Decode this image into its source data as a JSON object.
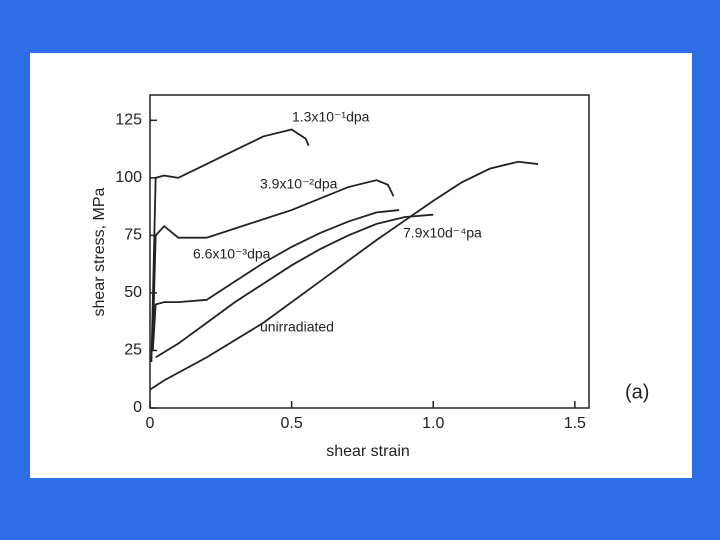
{
  "chart_data": {
    "type": "line",
    "xlabel": "shear strain",
    "ylabel": "shear stress, MPa",
    "annotation": "(a)",
    "xlim": [
      0,
      1.55
    ],
    "ylim": [
      0,
      136
    ],
    "xticks": [
      0,
      0.5,
      {
        "value": 1,
        "label": "1.0"
      },
      1.5
    ],
    "yticks": [
      0,
      25,
      50,
      75,
      100,
      125
    ],
    "series": [
      {
        "name": "1.3x10⁻¹dpa",
        "color": "#222222",
        "x": [
          0.005,
          0.02,
          0.05,
          0.1,
          0.15,
          0.2,
          0.3,
          0.4,
          0.5,
          0.55,
          0.56
        ],
        "values": [
          20,
          100,
          101,
          100,
          103,
          106,
          112,
          118,
          121,
          117,
          114
        ]
      },
      {
        "name": "3.9x10⁻²dpa",
        "color": "#222222",
        "x": [
          0.01,
          0.02,
          0.05,
          0.1,
          0.2,
          0.3,
          0.4,
          0.5,
          0.6,
          0.7,
          0.8,
          0.84,
          0.86
        ],
        "values": [
          30,
          75,
          79,
          74,
          74,
          78,
          82,
          86,
          91,
          96,
          99,
          97,
          92
        ]
      },
      {
        "name": "6.6x10⁻³dpa",
        "color": "#222222",
        "x": [
          0.01,
          0.02,
          0.05,
          0.1,
          0.2,
          0.3,
          0.4,
          0.5,
          0.6,
          0.7,
          0.8,
          0.88
        ],
        "values": [
          25,
          45,
          46,
          46,
          47,
          55,
          63,
          70,
          76,
          81,
          85,
          86
        ]
      },
      {
        "name": "7.9x10d⁻⁴pa",
        "color": "#222222",
        "x": [
          0.02,
          0.1,
          0.2,
          0.3,
          0.4,
          0.5,
          0.6,
          0.7,
          0.8,
          0.9,
          1.0
        ],
        "values": [
          22,
          28,
          37,
          46,
          54,
          62,
          69,
          75,
          80,
          83,
          84
        ]
      },
      {
        "name": "unirradiated",
        "color": "#222222",
        "x": [
          0,
          0.05,
          0.2,
          0.4,
          0.6,
          0.8,
          1.0,
          1.1,
          1.2,
          1.3,
          1.37
        ],
        "values": [
          8,
          12,
          22,
          37,
          55,
          73,
          90,
          98,
          104,
          107,
          106
        ]
      }
    ]
  }
}
